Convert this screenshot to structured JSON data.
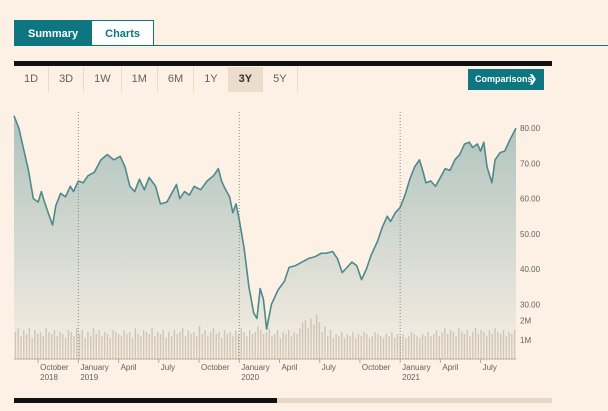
{
  "tabs": [
    {
      "label": "Summary",
      "active": true
    },
    {
      "label": "Charts",
      "active": false
    }
  ],
  "time_ranges": [
    "1D",
    "3D",
    "1W",
    "1M",
    "6M",
    "1Y",
    "3Y",
    "5Y"
  ],
  "selected_range": "3Y",
  "comparisons_label": "Comparisons",
  "comparisons_icon": "chevron-right-icon",
  "colors": {
    "accent": "#0d7680",
    "background": "#fdf1e6",
    "line": "#4d8a8c",
    "volume": "#d8c9b8"
  },
  "chart_data": {
    "type": "area",
    "x_ticks": [
      {
        "label": "October",
        "sub": "2018",
        "x": 2018.75
      },
      {
        "label": "January",
        "sub": "2019",
        "x": 2019.0
      },
      {
        "label": "April",
        "sub": "",
        "x": 2019.25
      },
      {
        "label": "July",
        "sub": "",
        "x": 2019.5
      },
      {
        "label": "October",
        "sub": "",
        "x": 2019.75
      },
      {
        "label": "January",
        "sub": "2020",
        "x": 2020.0
      },
      {
        "label": "April",
        "sub": "",
        "x": 2020.25
      },
      {
        "label": "July",
        "sub": "",
        "x": 2020.5
      },
      {
        "label": "October",
        "sub": "",
        "x": 2020.75
      },
      {
        "label": "January",
        "sub": "2021",
        "x": 2021.0
      },
      {
        "label": "April",
        "sub": "",
        "x": 2021.25
      },
      {
        "label": "July",
        "sub": "",
        "x": 2021.5
      }
    ],
    "year_dividers": [
      2019.0,
      2020.0,
      2021.0
    ],
    "x_range": [
      2018.6,
      2021.72
    ],
    "y_ticks": [
      "80.00",
      "70.00",
      "60.00",
      "50.00",
      "40.00",
      "30.00"
    ],
    "y_range": [
      25,
      84
    ],
    "volume_ticks": [
      "2M",
      "1M"
    ],
    "volume_range": [
      0,
      2.6
    ],
    "price": [
      [
        2018.6,
        83.5
      ],
      [
        2018.63,
        80.0
      ],
      [
        2018.66,
        74.0
      ],
      [
        2018.69,
        68.0
      ],
      [
        2018.72,
        60.0
      ],
      [
        2018.75,
        59.0
      ],
      [
        2018.77,
        62.0
      ],
      [
        2018.79,
        59.0
      ],
      [
        2018.82,
        55.0
      ],
      [
        2018.84,
        52.5
      ],
      [
        2018.86,
        58.0
      ],
      [
        2018.89,
        61.5
      ],
      [
        2018.92,
        60.5
      ],
      [
        2018.95,
        63.5
      ],
      [
        2018.97,
        62.0
      ],
      [
        2019.0,
        65.0
      ],
      [
        2019.03,
        64.5
      ],
      [
        2019.06,
        66.5
      ],
      [
        2019.1,
        67.5
      ],
      [
        2019.14,
        71.0
      ],
      [
        2019.18,
        72.5
      ],
      [
        2019.22,
        71.0
      ],
      [
        2019.26,
        72.0
      ],
      [
        2019.29,
        69.0
      ],
      [
        2019.32,
        63.5
      ],
      [
        2019.35,
        62.0
      ],
      [
        2019.38,
        65.5
      ],
      [
        2019.41,
        62.5
      ],
      [
        2019.44,
        66.0
      ],
      [
        2019.48,
        63.5
      ],
      [
        2019.51,
        58.5
      ],
      [
        2019.55,
        59.0
      ],
      [
        2019.58,
        61.5
      ],
      [
        2019.61,
        64.0
      ],
      [
        2019.63,
        60.0
      ],
      [
        2019.66,
        62.0
      ],
      [
        2019.69,
        61.0
      ],
      [
        2019.72,
        63.5
      ],
      [
        2019.76,
        62.5
      ],
      [
        2019.8,
        65.0
      ],
      [
        2019.84,
        66.5
      ],
      [
        2019.87,
        68.5
      ],
      [
        2019.89,
        65.0
      ],
      [
        2019.91,
        63.0
      ],
      [
        2019.94,
        60.5
      ],
      [
        2019.96,
        56.0
      ],
      [
        2019.98,
        58.5
      ],
      [
        2020.0,
        54.0
      ],
      [
        2020.03,
        46.0
      ],
      [
        2020.06,
        35.0
      ],
      [
        2020.09,
        27.5
      ],
      [
        2020.11,
        26.0
      ],
      [
        2020.13,
        34.5
      ],
      [
        2020.15,
        31.5
      ],
      [
        2020.17,
        23.0
      ],
      [
        2020.2,
        30.0
      ],
      [
        2020.24,
        34.0
      ],
      [
        2020.28,
        36.5
      ],
      [
        2020.31,
        40.5
      ],
      [
        2020.35,
        41.0
      ],
      [
        2020.39,
        42.0
      ],
      [
        2020.43,
        43.0
      ],
      [
        2020.47,
        43.5
      ],
      [
        2020.51,
        44.5
      ],
      [
        2020.54,
        44.5
      ],
      [
        2020.58,
        45.0
      ],
      [
        2020.61,
        43.0
      ],
      [
        2020.64,
        39.0
      ],
      [
        2020.67,
        40.5
      ],
      [
        2020.7,
        42.0
      ],
      [
        2020.73,
        41.0
      ],
      [
        2020.76,
        37.0
      ],
      [
        2020.79,
        40.0
      ],
      [
        2020.82,
        44.0
      ],
      [
        2020.86,
        48.0
      ],
      [
        2020.89,
        52.0
      ],
      [
        2020.92,
        55.0
      ],
      [
        2020.94,
        53.5
      ],
      [
        2020.97,
        56.0
      ],
      [
        2021.0,
        57.5
      ],
      [
        2021.03,
        61.0
      ],
      [
        2021.06,
        65.5
      ],
      [
        2021.09,
        69.0
      ],
      [
        2021.12,
        71.0
      ],
      [
        2021.14,
        68.0
      ],
      [
        2021.16,
        64.5
      ],
      [
        2021.19,
        65.0
      ],
      [
        2021.22,
        63.5
      ],
      [
        2021.25,
        66.0
      ],
      [
        2021.28,
        68.5
      ],
      [
        2021.31,
        68.0
      ],
      [
        2021.34,
        71.0
      ],
      [
        2021.37,
        72.5
      ],
      [
        2021.4,
        75.5
      ],
      [
        2021.43,
        76.0
      ],
      [
        2021.45,
        74.5
      ],
      [
        2021.48,
        75.5
      ],
      [
        2021.5,
        73.5
      ],
      [
        2021.52,
        76.0
      ],
      [
        2021.54,
        69.0
      ],
      [
        2021.57,
        64.5
      ],
      [
        2021.59,
        71.0
      ],
      [
        2021.62,
        73.0
      ],
      [
        2021.65,
        73.5
      ],
      [
        2021.68,
        76.5
      ],
      [
        2021.72,
        80.0
      ]
    ],
    "volume": [
      1.4,
      1.6,
      1.2,
      1.5,
      1.3,
      1.6,
      1.1,
      1.5,
      1.3,
      1.4,
      1.2,
      1.6,
      1.4,
      1.3,
      1.5,
      1.2,
      1.4,
      1.3,
      1.1,
      1.5,
      1.4,
      1.2,
      1.6,
      1.3,
      1.5,
      1.1,
      1.4,
      1.2,
      1.6,
      1.3,
      1.5,
      1.2,
      1.4,
      1.3,
      1.1,
      1.5,
      1.4,
      1.3,
      1.2,
      1.5,
      1.3,
      1.4,
      1.1,
      1.6,
      1.3,
      1.2,
      1.5,
      1.4,
      1.3,
      1.6,
      1.2,
      1.4,
      1.3,
      1.5,
      1.1,
      1.4,
      1.2,
      1.5,
      1.3,
      1.4,
      1.6,
      1.2,
      1.5,
      1.3,
      1.4,
      1.2,
      1.7,
      1.3,
      1.5,
      1.2,
      1.4,
      1.6,
      1.3,
      1.4,
      1.1,
      1.5,
      1.3,
      1.4,
      1.2,
      1.5,
      1.3,
      1.6,
      1.4,
      1.2,
      1.5,
      1.3,
      1.4,
      1.7,
      1.5,
      1.3,
      1.4,
      1.6,
      1.2,
      1.3,
      1.5,
      1.1,
      1.4,
      1.3,
      1.5,
      1.2,
      1.4,
      1.3,
      1.6,
      1.9,
      2.0,
      1.6,
      2.1,
      1.8,
      2.3,
      1.9,
      1.4,
      1.7,
      1.2,
      1.5,
      1.1,
      1.3,
      1.2,
      1.4,
      1.1,
      1.3,
      1.2,
      1.4,
      1.1,
      1.3,
      1.2,
      1.4,
      1.3,
      1.1,
      1.2,
      1.4,
      1.3,
      1.2,
      1.1,
      1.3,
      1.2,
      1.4,
      1.1,
      1.3,
      1.2,
      1.3,
      1.1,
      1.2,
      1.4,
      1.3,
      1.2,
      1.1,
      1.3,
      1.2,
      1.4,
      1.2,
      1.3,
      1.5,
      1.2,
      1.4,
      1.6,
      1.3,
      1.5,
      1.4,
      1.2,
      1.6,
      1.4,
      1.3,
      1.5,
      1.2,
      1.4,
      1.6,
      1.3,
      1.5,
      1.4,
      1.2,
      1.5,
      1.3,
      1.6,
      1.4,
      1.3,
      1.5,
      1.2,
      1.4,
      1.3,
      1.5
    ]
  }
}
